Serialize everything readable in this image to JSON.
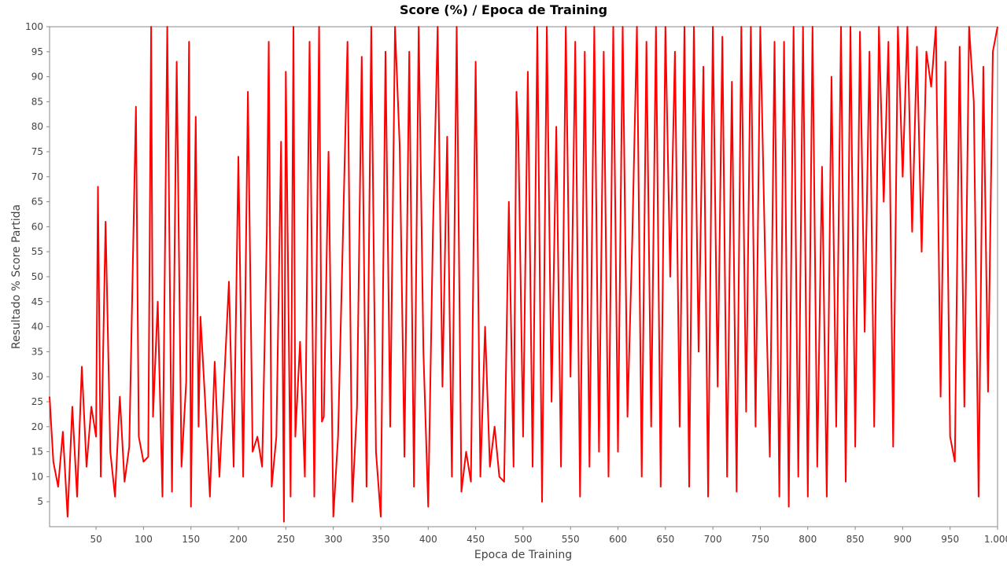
{
  "chart_data": {
    "type": "line",
    "title": "Score (%) / Epoca de Training",
    "xlabel": "Epoca de Training",
    "ylabel": "Resultado % Score Partida",
    "xlim": [
      1,
      1000
    ],
    "ylim": [
      0,
      100
    ],
    "x_ticks": [
      50,
      100,
      150,
      200,
      250,
      300,
      350,
      400,
      450,
      500,
      550,
      600,
      650,
      700,
      750,
      800,
      850,
      900,
      950,
      1000
    ],
    "x_tick_labels": [
      "50",
      "100",
      "150",
      "200",
      "250",
      "300",
      "350",
      "400",
      "450",
      "500",
      "550",
      "600",
      "650",
      "700",
      "750",
      "800",
      "850",
      "900",
      "950",
      "1.000"
    ],
    "y_ticks": [
      5,
      10,
      15,
      20,
      25,
      30,
      35,
      40,
      45,
      50,
      55,
      60,
      65,
      70,
      75,
      80,
      85,
      90,
      95,
      100
    ],
    "grid": false,
    "series": [
      {
        "color": "#ff0000",
        "note_sampled": true,
        "x": [
          1,
          5,
          10,
          15,
          20,
          25,
          30,
          35,
          40,
          45,
          50,
          52,
          55,
          60,
          65,
          70,
          75,
          80,
          85,
          90,
          92,
          95,
          100,
          105,
          108,
          110,
          115,
          120,
          125,
          130,
          135,
          140,
          145,
          148,
          150,
          155,
          158,
          160,
          165,
          170,
          175,
          180,
          185,
          190,
          195,
          200,
          205,
          210,
          215,
          220,
          225,
          230,
          232,
          235,
          240,
          245,
          248,
          250,
          255,
          258,
          260,
          265,
          270,
          275,
          280,
          285,
          288,
          290,
          295,
          300,
          305,
          310,
          315,
          320,
          325,
          330,
          335,
          340,
          345,
          350,
          355,
          360,
          365,
          370,
          375,
          380,
          385,
          390,
          395,
          400,
          405,
          410,
          415,
          420,
          425,
          430,
          435,
          440,
          445,
          450,
          455,
          460,
          465,
          470,
          475,
          480,
          485,
          490,
          493,
          495,
          500,
          505,
          510,
          515,
          520,
          525,
          530,
          535,
          540,
          545,
          550,
          555,
          560,
          565,
          570,
          575,
          580,
          585,
          590,
          595,
          600,
          605,
          610,
          615,
          620,
          625,
          630,
          635,
          640,
          645,
          650,
          655,
          660,
          665,
          670,
          675,
          680,
          685,
          690,
          695,
          700,
          705,
          710,
          715,
          720,
          725,
          730,
          735,
          740,
          745,
          750,
          755,
          760,
          765,
          770,
          775,
          780,
          785,
          790,
          795,
          800,
          805,
          810,
          815,
          820,
          825,
          830,
          835,
          840,
          845,
          850,
          855,
          860,
          865,
          870,
          875,
          880,
          885,
          890,
          895,
          900,
          905,
          910,
          915,
          920,
          925,
          930,
          935,
          940,
          945,
          950,
          955,
          960,
          965,
          970,
          975,
          980,
          985,
          990,
          995,
          1000
        ],
        "y": [
          26,
          13,
          8,
          19,
          2,
          24,
          6,
          32,
          12,
          24,
          18,
          68,
          10,
          61,
          15,
          6,
          26,
          9,
          16,
          65,
          84,
          18,
          13,
          14,
          100,
          22,
          45,
          6,
          100,
          7,
          93,
          12,
          29,
          97,
          4,
          82,
          20,
          42,
          25,
          6,
          33,
          10,
          29,
          49,
          12,
          74,
          10,
          87,
          15,
          18,
          12,
          59,
          97,
          8,
          18,
          77,
          1,
          91,
          6,
          100,
          18,
          37,
          10,
          97,
          6,
          100,
          21,
          22,
          75,
          2,
          18,
          57,
          97,
          5,
          24,
          94,
          8,
          100,
          15,
          2,
          95,
          20,
          100,
          76,
          14,
          95,
          8,
          100,
          35,
          4,
          59,
          100,
          28,
          78,
          10,
          100,
          7,
          15,
          9,
          93,
          10,
          40,
          12,
          20,
          10,
          9,
          65,
          12,
          87,
          78,
          18,
          91,
          12,
          100,
          5,
          100,
          25,
          80,
          12,
          100,
          30,
          97,
          6,
          95,
          12,
          100,
          15,
          95,
          10,
          100,
          15,
          100,
          22,
          57,
          100,
          10,
          97,
          20,
          100,
          8,
          100,
          50,
          95,
          20,
          100,
          8,
          100,
          35,
          92,
          6,
          100,
          28,
          98,
          10,
          89,
          7,
          100,
          23,
          100,
          20,
          100,
          54,
          14,
          97,
          6,
          97,
          4,
          100,
          10,
          100,
          6,
          100,
          12,
          72,
          6,
          90,
          20,
          100,
          9,
          100,
          16,
          99,
          39,
          95,
          20,
          100,
          65,
          97,
          16,
          100,
          70,
          100,
          59,
          96,
          55,
          95,
          88,
          100,
          26,
          93,
          18,
          13,
          96,
          24,
          100,
          85,
          6,
          92,
          27,
          95,
          100
        ]
      }
    ]
  }
}
